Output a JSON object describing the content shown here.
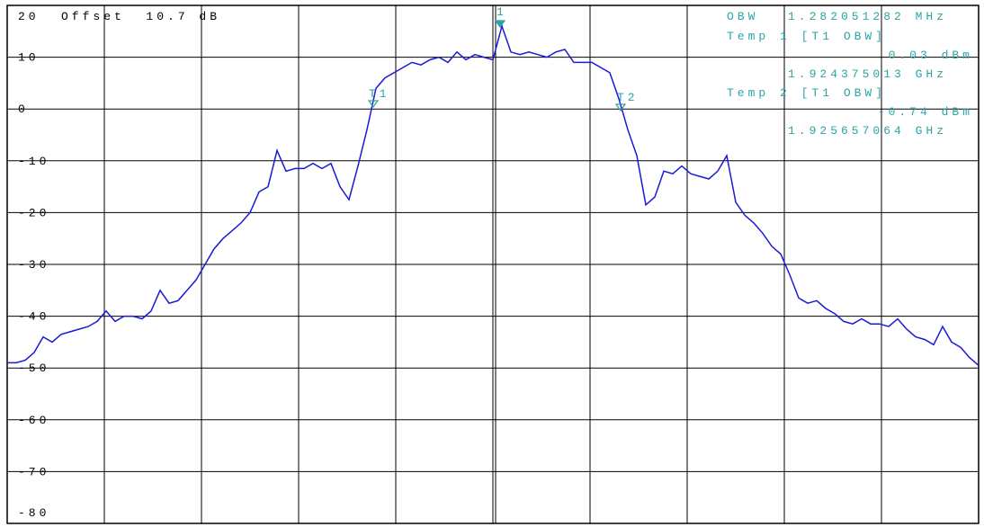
{
  "chart_data": {
    "type": "line",
    "offset_label": "Offset  10.7 dB",
    "readout": [
      "OBW",
      "1.282051282 MHz",
      "Temp 1 [T1 OBW]",
      "0.03 dBm",
      "1.924375013 GHz",
      "Temp 2 [T1 OBW]",
      "-0.74 dBm",
      "1.925657064 GHz"
    ],
    "markers": [
      "T1",
      "T2",
      "1"
    ],
    "ylim": [
      -80,
      20
    ],
    "yticks": [
      20,
      10,
      0,
      -10,
      -20,
      -30,
      -40,
      -50,
      -60,
      -70,
      -80
    ],
    "grid": true,
    "color": "#1a1ad8",
    "annotation_color": "#2ba5a5",
    "values": [
      -49,
      -49,
      -48.5,
      -47,
      -44,
      -45,
      -43.5,
      -43,
      -42.5,
      -42,
      -41,
      -39,
      -41,
      -40,
      -40,
      -40.5,
      -39,
      -35,
      -37.5,
      -37,
      -35,
      -33,
      -30,
      -27,
      -25,
      -23.5,
      -22,
      -20,
      -16,
      -15,
      -8,
      -12,
      -11.5,
      -11.5,
      -10.5,
      -11.5,
      -10.5,
      -15,
      -17.5,
      -11,
      -4,
      4,
      6,
      7,
      8,
      9,
      8.5,
      9.5,
      10,
      9,
      11,
      9.5,
      10.5,
      10,
      9.5,
      16,
      11,
      10.5,
      11,
      10.5,
      10,
      11,
      11.5,
      9,
      9,
      9,
      8,
      7,
      2,
      -4,
      -9,
      -18.5,
      -17,
      -12,
      -12.5,
      -11,
      -12.5,
      -13,
      -13.5,
      -12,
      -9,
      -18,
      -20.5,
      -22,
      -24,
      -26.5,
      -28,
      -32,
      -36.5,
      -37.5,
      -37,
      -38.5,
      -39.5,
      -41,
      -41.5,
      -40.5,
      -41.5,
      -41.5,
      -42,
      -40.5,
      -42.5,
      -44,
      -44.5,
      -45.5,
      -42,
      -45,
      -46,
      -48,
      -49.5
    ]
  }
}
